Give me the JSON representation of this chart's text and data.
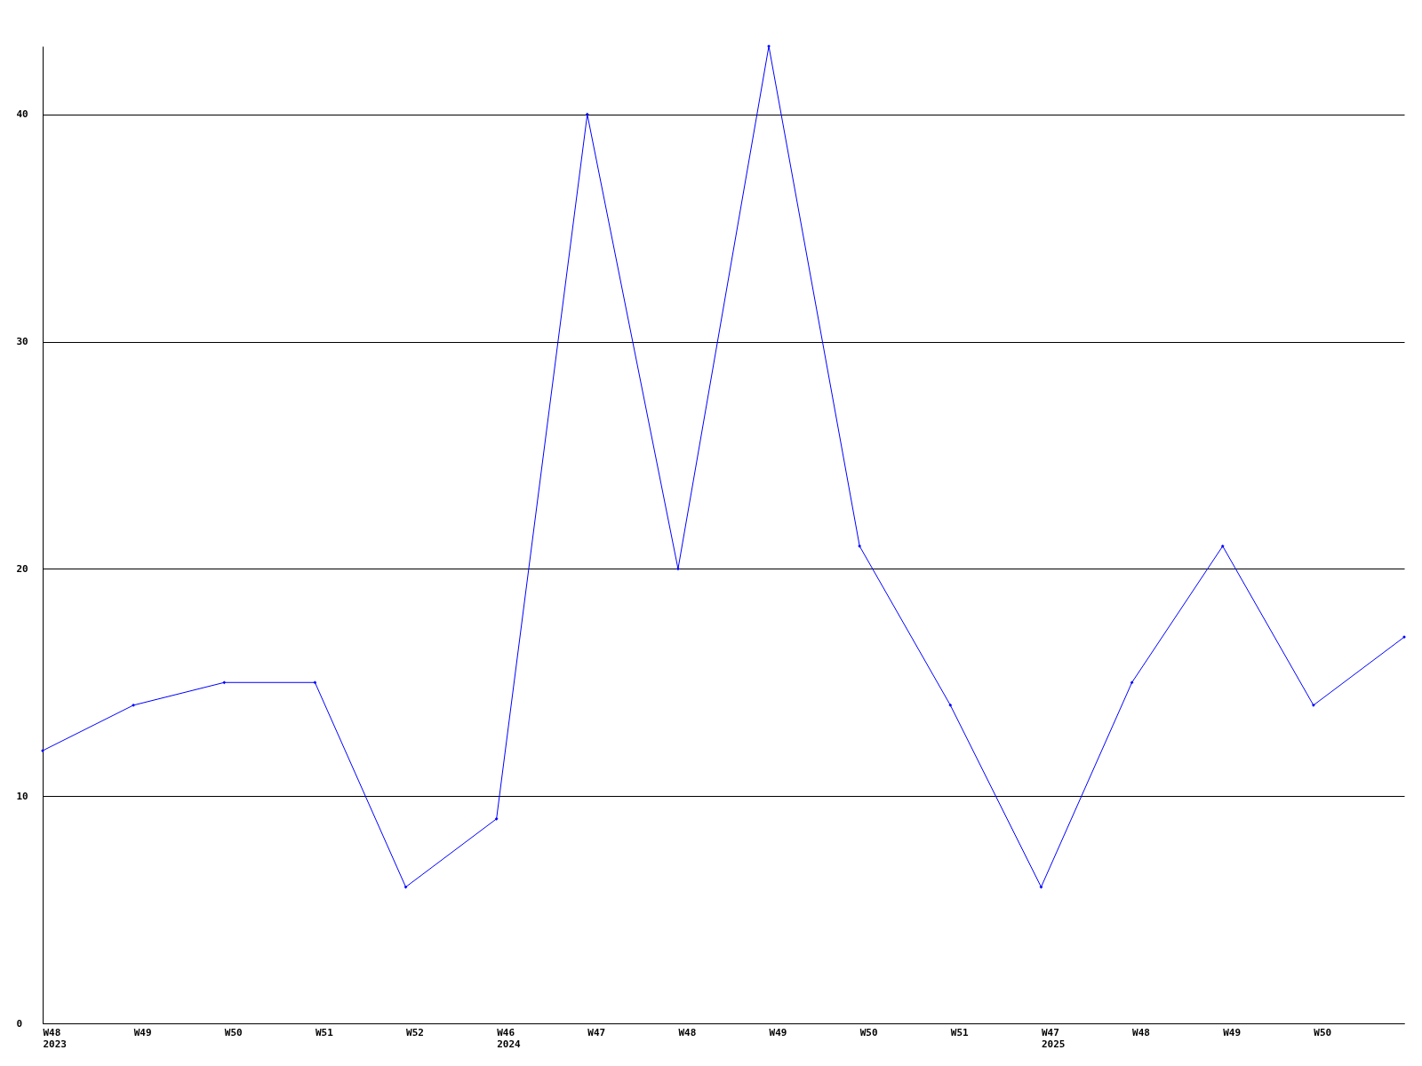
{
  "chart_data": {
    "type": "line",
    "categories": [
      "W48\n2023",
      "W49",
      "W50",
      "W51",
      "W52",
      "W46\n2024",
      "W47",
      "W48",
      "W49",
      "W50",
      "W51",
      "W47\n2025",
      "W48",
      "W49",
      "W50",
      null
    ],
    "series": [
      {
        "color": "#0000ff",
        "values": [
          12,
          14,
          15,
          15,
          6,
          9,
          40,
          20,
          43,
          21,
          14,
          6,
          15,
          21,
          14,
          17
        ]
      }
    ],
    "ylim": [
      0,
      43
    ],
    "yticks": [
      0,
      10,
      20,
      30,
      40
    ],
    "grid": "y",
    "marker": "diamond",
    "line_style": "solid"
  }
}
